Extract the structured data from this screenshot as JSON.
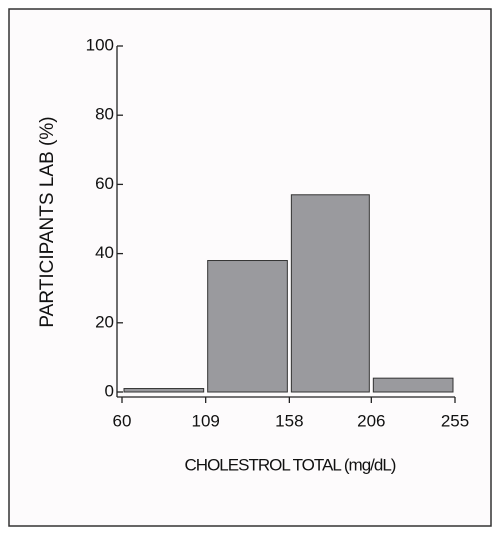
{
  "chart_data": {
    "type": "histogram",
    "x_label": "CHOLESTROL TOTAL (mg/dL)",
    "y_label": "PARTICIPANTS LAB (%)",
    "bins": [
      60,
      109,
      158,
      206,
      255
    ],
    "values": [
      1,
      38,
      57,
      4
    ],
    "color": "#9a9a9e",
    "xlim": [
      60,
      255
    ],
    "xticks": [
      60,
      109,
      158,
      206,
      255
    ],
    "ylim": [
      0,
      100
    ],
    "yticks": [
      0,
      20,
      40,
      60,
      80,
      100
    ]
  }
}
